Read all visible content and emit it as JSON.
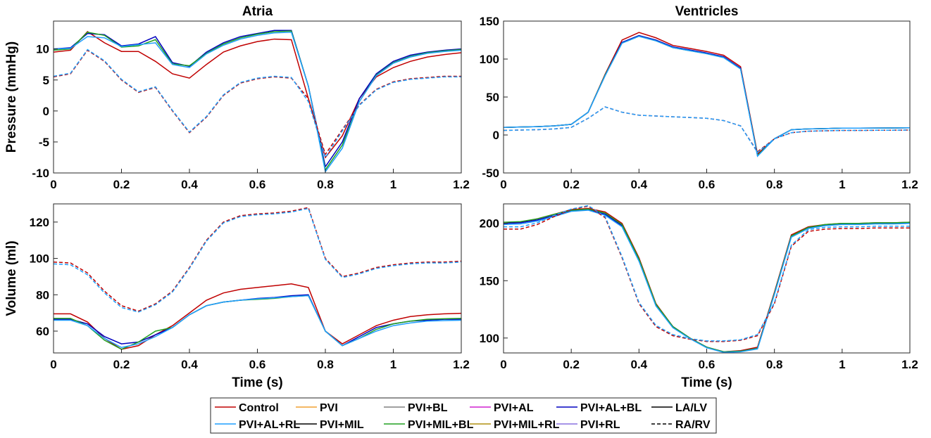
{
  "chart_data": [
    {
      "type": "line",
      "title": "Atria",
      "ylabel": "Pressure (mmHg)",
      "x": [
        0,
        0.05,
        0.1,
        0.15,
        0.2,
        0.25,
        0.3,
        0.35,
        0.4,
        0.45,
        0.5,
        0.55,
        0.6,
        0.65,
        0.7,
        0.75,
        0.8,
        0.85,
        0.9,
        0.95,
        1,
        1.05,
        1.1,
        1.15,
        1.2
      ],
      "xlim": [
        0,
        1.2
      ],
      "xticks": [
        0,
        0.2,
        0.4,
        0.6,
        0.8,
        1,
        1.2
      ],
      "ylim": [
        -10,
        14.5
      ],
      "yticks": [
        -10,
        -5,
        0,
        5,
        10
      ],
      "series": [
        {
          "name": "Control",
          "color": "#c00000",
          "style": "solid",
          "values": [
            9.5,
            9.8,
            12.8,
            11,
            9.6,
            9.6,
            8,
            6,
            5.3,
            7.5,
            9.5,
            10.5,
            11.2,
            11.6,
            11.5,
            2,
            -7.5,
            -4,
            2,
            5.5,
            7,
            8,
            8.7,
            9.1,
            9.4
          ]
        },
        {
          "name": "PVI+AL+BL",
          "color": "#0000c0",
          "style": "solid",
          "values": [
            10,
            10.2,
            12.5,
            12.3,
            10.5,
            10.8,
            12,
            7.8,
            7.2,
            9.5,
            11,
            12,
            12.5,
            13,
            13,
            4,
            -9,
            -5,
            2,
            6,
            8,
            9,
            9.5,
            9.8,
            10
          ]
        },
        {
          "name": "PVI+MIL+BL",
          "color": "#20a020",
          "style": "solid",
          "values": [
            9.8,
            10,
            12.7,
            12.2,
            10.3,
            10.5,
            11.5,
            7.6,
            7.3,
            9.3,
            10.8,
            11.8,
            12.4,
            12.8,
            12.9,
            4,
            -9.5,
            -5.5,
            1.5,
            5.8,
            7.8,
            8.8,
            9.4,
            9.7,
            9.9
          ]
        },
        {
          "name": "PVI+AL+RL",
          "color": "#1f9fff",
          "style": "solid",
          "values": [
            10,
            10.1,
            12,
            11.8,
            10.4,
            10.7,
            11,
            7.5,
            7,
            9.2,
            10.6,
            11.6,
            12.2,
            12.6,
            12.7,
            4,
            -9.8,
            -6,
            1.5,
            5.7,
            7.7,
            8.7,
            9.3,
            9.6,
            9.8
          ]
        },
        {
          "name": "Control",
          "color": "#c00000",
          "style": "dashed",
          "values": [
            5.5,
            6,
            9.8,
            8,
            5,
            3,
            3.8,
            0,
            -3.5,
            -1,
            2.5,
            4.5,
            5.2,
            5.5,
            5.3,
            2,
            -7,
            -3,
            1,
            3.5,
            4.7,
            5.2,
            5.4,
            5.6,
            5.6
          ]
        },
        {
          "name": "PVI+AL+RL",
          "color": "#1f9fff",
          "style": "dashed",
          "values": [
            5.6,
            6.1,
            9.9,
            8.1,
            5.1,
            3.1,
            3.9,
            0.1,
            -3.4,
            -0.9,
            2.6,
            4.6,
            5.3,
            5.6,
            5.4,
            1.5,
            -7.5,
            -3.2,
            0.9,
            3.4,
            4.6,
            5.1,
            5.3,
            5.5,
            5.5
          ]
        }
      ]
    },
    {
      "type": "line",
      "title": "Ventricles",
      "x": [
        0,
        0.05,
        0.1,
        0.15,
        0.2,
        0.25,
        0.3,
        0.35,
        0.4,
        0.45,
        0.5,
        0.55,
        0.6,
        0.65,
        0.7,
        0.75,
        0.8,
        0.85,
        0.9,
        0.95,
        1,
        1.05,
        1.1,
        1.15,
        1.2
      ],
      "xlim": [
        0,
        1.2
      ],
      "xticks": [
        0,
        0.2,
        0.4,
        0.6,
        0.8,
        1,
        1.2
      ],
      "ylim": [
        -50,
        150
      ],
      "yticks": [
        -50,
        0,
        50,
        100,
        150
      ],
      "series": [
        {
          "name": "Control",
          "color": "#c00000",
          "style": "solid",
          "values": [
            10,
            10.5,
            11,
            12,
            14,
            30,
            80,
            125,
            135,
            128,
            118,
            114,
            110,
            105,
            90,
            -25,
            -5,
            7,
            8,
            8.5,
            9,
            9,
            9.2,
            9.3,
            9.5
          ]
        },
        {
          "name": "PVI+AL+BL",
          "color": "#0000c0",
          "style": "solid",
          "values": [
            10,
            10.5,
            11,
            12,
            14,
            30,
            79,
            122,
            131,
            125,
            116,
            112,
            108,
            103,
            88,
            -27,
            -5,
            7,
            8,
            8.5,
            9,
            9,
            9.2,
            9.3,
            9.5
          ]
        },
        {
          "name": "PVI+MIL+BL",
          "color": "#20a020",
          "style": "solid",
          "values": [
            10,
            10.5,
            11,
            12,
            14,
            30,
            79,
            121,
            130,
            124,
            115,
            111,
            107,
            102,
            87,
            -27,
            -5,
            7,
            8,
            8.5,
            9,
            9,
            9.2,
            9.3,
            9.5
          ]
        },
        {
          "name": "PVI+AL+RL",
          "color": "#1f9fff",
          "style": "solid",
          "values": [
            10,
            10.5,
            11,
            12,
            14,
            30,
            78,
            121,
            130,
            124,
            115,
            111,
            107,
            102,
            87,
            -28,
            -5,
            7,
            8,
            8.5,
            9,
            9,
            9.2,
            9.3,
            9.5
          ]
        },
        {
          "name": "Control",
          "color": "#c00000",
          "style": "dashed",
          "values": [
            6,
            6.5,
            7,
            8,
            10,
            22,
            37,
            30,
            26,
            25,
            24,
            23,
            22,
            19,
            12,
            -22,
            -5,
            3,
            5,
            5.5,
            6,
            6,
            6.2,
            6.3,
            6.5
          ]
        },
        {
          "name": "PVI+AL+RL",
          "color": "#1f9fff",
          "style": "dashed",
          "values": [
            6,
            6.5,
            7,
            8,
            10,
            22,
            37,
            30,
            26,
            25,
            24,
            23,
            22,
            19,
            12,
            -23,
            -5,
            3,
            5,
            5.5,
            6,
            6,
            6.2,
            6.3,
            6.5
          ]
        }
      ]
    },
    {
      "type": "line",
      "ylabel": "Volume (ml)",
      "xlabel": "Time (s)",
      "x": [
        0,
        0.05,
        0.1,
        0.15,
        0.2,
        0.25,
        0.3,
        0.35,
        0.4,
        0.45,
        0.5,
        0.55,
        0.6,
        0.65,
        0.7,
        0.75,
        0.8,
        0.85,
        0.9,
        0.95,
        1,
        1.05,
        1.1,
        1.15,
        1.2
      ],
      "xlim": [
        0,
        1.2
      ],
      "xticks": [
        0,
        0.2,
        0.4,
        0.6,
        0.8,
        1,
        1.2
      ],
      "ylim": [
        48,
        130
      ],
      "yticks": [
        60,
        80,
        100,
        120
      ],
      "series": [
        {
          "name": "Control",
          "color": "#c00000",
          "style": "solid",
          "values": [
            69.5,
            69.5,
            65,
            56,
            50,
            52,
            58,
            63,
            70,
            77,
            81,
            83,
            84,
            85,
            86,
            84,
            60,
            53,
            58,
            63,
            66,
            68,
            69,
            69.5,
            69.8
          ]
        },
        {
          "name": "PVI+AL+BL",
          "color": "#0000c0",
          "style": "solid",
          "values": [
            66.5,
            66.5,
            64,
            57,
            53,
            54,
            58,
            62,
            69,
            74,
            76,
            77,
            78,
            78.5,
            79.5,
            80,
            60,
            52,
            57,
            62,
            64,
            65.5,
            66,
            66.5,
            66.5
          ]
        },
        {
          "name": "PVI+MIL+BL",
          "color": "#20a020",
          "style": "solid",
          "values": [
            67,
            67,
            63,
            55,
            50,
            54,
            60,
            62,
            69,
            74,
            76,
            77,
            77.5,
            78,
            79,
            79.5,
            60,
            52,
            56,
            61,
            64,
            65.5,
            66.5,
            66.8,
            67
          ]
        },
        {
          "name": "PVI+AL+RL",
          "color": "#1f9fff",
          "style": "solid",
          "values": [
            66,
            66,
            63,
            56,
            51,
            53,
            57,
            62,
            69,
            74,
            76,
            77,
            77.8,
            78.3,
            79,
            79.5,
            60,
            52,
            56,
            60,
            63,
            64.5,
            65.5,
            65.8,
            66
          ]
        },
        {
          "name": "Control",
          "color": "#c00000",
          "style": "dashed",
          "values": [
            98,
            97.5,
            92,
            82,
            74,
            71,
            75,
            82,
            95,
            110,
            120,
            123.5,
            124.5,
            125,
            126,
            128,
            100,
            90,
            92,
            95,
            96.5,
            97.5,
            98,
            98,
            98.5
          ]
        },
        {
          "name": "PVI+AL+RL",
          "color": "#1f9fff",
          "style": "dashed",
          "values": [
            97,
            96.5,
            91,
            81,
            73,
            70.5,
            74.5,
            81.5,
            94.5,
            109.5,
            119.5,
            123,
            124,
            124.5,
            125.5,
            127.5,
            99.5,
            89.5,
            91.5,
            94.5,
            96,
            97,
            97.5,
            97.5,
            98
          ]
        }
      ]
    },
    {
      "type": "line",
      "xlabel": "Time (s)",
      "x": [
        0,
        0.05,
        0.1,
        0.15,
        0.2,
        0.25,
        0.3,
        0.35,
        0.4,
        0.45,
        0.5,
        0.55,
        0.6,
        0.65,
        0.7,
        0.75,
        0.8,
        0.85,
        0.9,
        0.95,
        1,
        1.05,
        1.1,
        1.15,
        1.2
      ],
      "xlim": [
        0,
        1.2
      ],
      "xticks": [
        0,
        0.2,
        0.4,
        0.6,
        0.8,
        1,
        1.2
      ],
      "ylim": [
        87,
        217
      ],
      "yticks": [
        100,
        150,
        200
      ],
      "series": [
        {
          "name": "Control",
          "color": "#c00000",
          "style": "solid",
          "values": [
            200,
            201,
            204,
            208,
            212,
            213,
            210,
            200,
            170,
            130,
            110,
            100,
            92,
            88,
            89,
            92,
            140,
            190,
            197,
            199,
            200,
            200,
            200.5,
            200.5,
            201
          ]
        },
        {
          "name": "PVI+AL+BL",
          "color": "#0000c0",
          "style": "solid",
          "values": [
            200,
            200.5,
            203,
            207,
            211,
            212,
            208,
            198,
            168,
            129,
            110,
            100,
            92,
            88,
            88.5,
            91,
            139,
            189,
            196,
            198.5,
            199.5,
            199.5,
            200,
            200,
            200.5
          ]
        },
        {
          "name": "PVI+MIL+BL",
          "color": "#20a020",
          "style": "solid",
          "values": [
            201,
            201.5,
            204,
            208,
            211.5,
            212.5,
            209,
            199,
            169,
            129.5,
            110,
            100,
            92,
            88,
            88.5,
            91,
            139,
            189,
            196.5,
            199,
            200,
            200,
            200.5,
            200.5,
            201
          ]
        },
        {
          "name": "PVI+AL+RL",
          "color": "#1f9fff",
          "style": "solid",
          "values": [
            199,
            199.5,
            202,
            206,
            210.5,
            211.5,
            207,
            197,
            167,
            128,
            109,
            99.5,
            91.5,
            87.5,
            88,
            90.5,
            138,
            188,
            195.5,
            198,
            199,
            199,
            199.5,
            199.5,
            200
          ]
        },
        {
          "name": "Control",
          "color": "#c00000",
          "style": "dashed",
          "values": [
            195,
            195,
            199,
            206,
            212,
            215,
            205,
            170,
            130,
            110,
            102,
            99,
            97,
            97,
            98,
            102,
            130,
            180,
            193,
            195,
            195.5,
            195.5,
            196,
            196,
            196
          ]
        },
        {
          "name": "PVI+AL+RL",
          "color": "#1f9fff",
          "style": "dashed",
          "values": [
            197,
            197,
            200.5,
            207,
            212.5,
            215.5,
            206,
            171,
            131,
            111,
            103,
            99.5,
            97.5,
            97.5,
            98.5,
            103,
            131,
            181,
            194.5,
            196.5,
            197,
            197,
            197.5,
            197.5,
            197.5
          ]
        }
      ]
    }
  ],
  "legend": [
    {
      "name": "Control",
      "color": "#c00000",
      "style": "solid"
    },
    {
      "name": "PVI",
      "color": "#f0a030",
      "style": "solid"
    },
    {
      "name": "PVI+BL",
      "color": "#808080",
      "style": "solid"
    },
    {
      "name": "PVI+AL",
      "color": "#d020d0",
      "style": "solid"
    },
    {
      "name": "PVI+AL+BL",
      "color": "#0000c0",
      "style": "solid"
    },
    {
      "name": "LA/LV",
      "color": "#000000",
      "style": "solid"
    },
    {
      "name": "PVI+AL+RL",
      "color": "#1f9fff",
      "style": "solid"
    },
    {
      "name": "PVI+MIL",
      "color": "#000000",
      "style": "solid"
    },
    {
      "name": "PVI+MIL+BL",
      "color": "#20a020",
      "style": "solid"
    },
    {
      "name": "PVI+MIL+RL",
      "color": "#b09010",
      "style": "solid"
    },
    {
      "name": "PVI+RL",
      "color": "#8a70e0",
      "style": "solid"
    },
    {
      "name": "RA/RV",
      "color": "#000000",
      "style": "dashed"
    }
  ]
}
